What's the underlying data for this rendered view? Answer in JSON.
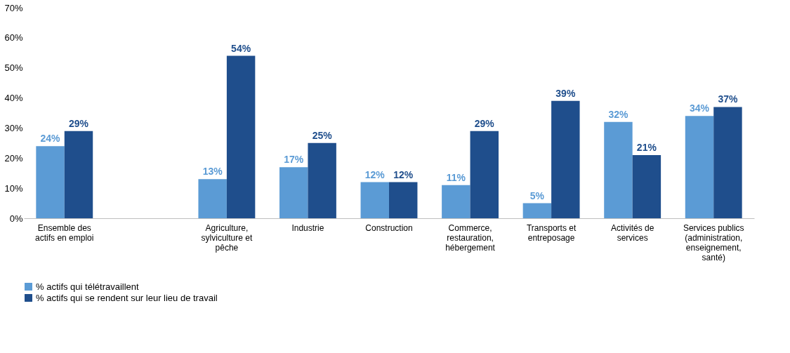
{
  "chart_data": {
    "type": "bar",
    "categories": [
      "Ensemble des actifs en emploi",
      null,
      "Agriculture, sylviculture et pêche",
      "Industrie",
      "Construction",
      "Commerce, restauration, hébergement",
      "Transports et entreposage",
      "Activités de services",
      "Services publics (administration, enseignement, santé)"
    ],
    "series": [
      {
        "name": "% actifs qui télétravaillent",
        "color": "#5b9bd5",
        "values": [
          24,
          null,
          13,
          17,
          12,
          11,
          5,
          32,
          34
        ],
        "value_labels": [
          "24%",
          null,
          "13%",
          "17%",
          "12%",
          "11%",
          "5%",
          "32%",
          "34%"
        ]
      },
      {
        "name": "% actifs qui se rendent sur leur lieu de travail",
        "color": "#1f4e8c",
        "values": [
          29,
          null,
          54,
          25,
          12,
          29,
          39,
          21,
          37
        ],
        "value_labels": [
          "29%",
          null,
          "54%",
          "25%",
          "12%",
          "29%",
          "39%",
          "21%",
          "37%"
        ]
      }
    ],
    "ylim": [
      0,
      70
    ],
    "yticks": [
      {
        "value": 0,
        "label": "0%"
      },
      {
        "value": 10,
        "label": "10%"
      },
      {
        "value": 20,
        "label": "20%"
      },
      {
        "value": 30,
        "label": "30%"
      },
      {
        "value": 40,
        "label": "40%"
      },
      {
        "value": 50,
        "label": "50%"
      },
      {
        "value": 60,
        "label": "60%"
      },
      {
        "value": 70,
        "label": "70%"
      }
    ],
    "grid": false,
    "legend": "bottom left"
  }
}
